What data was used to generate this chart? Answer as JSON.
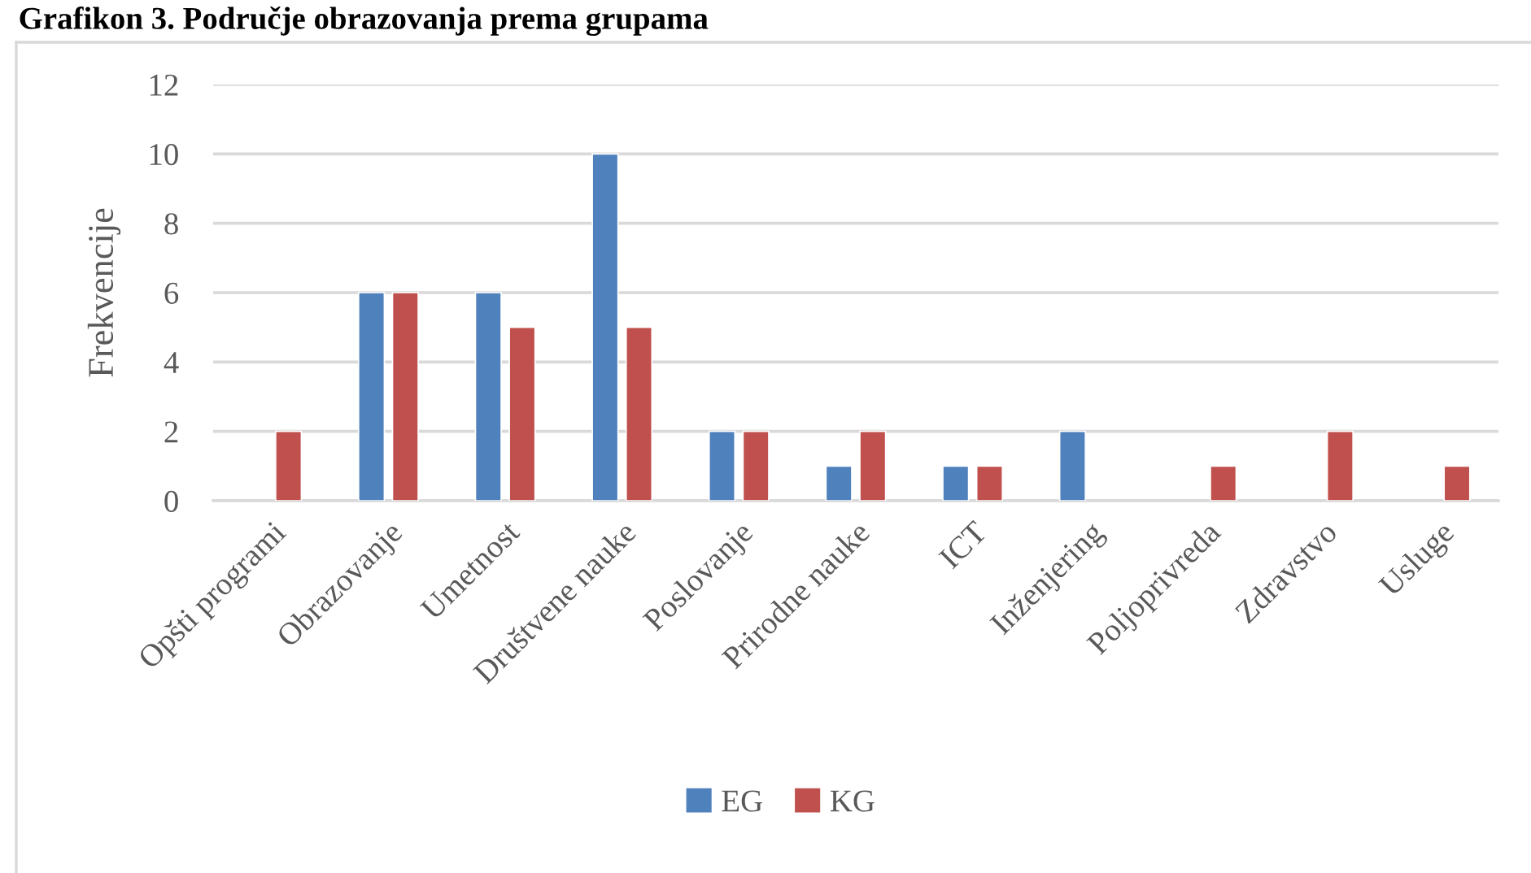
{
  "chart_data": {
    "type": "bar",
    "title": "Grafikon 3. Područje obrazovanja prema grupama",
    "ylabel": "Frekvencije",
    "categories": [
      "Opšti programi",
      "Obrazovanje",
      "Umetnost",
      "Društvene nauke",
      "Poslovanje",
      "Prirodne nauke",
      "ICT",
      "Inženjering",
      "Poljoprivreda",
      "Zdravstvo",
      "Usluge"
    ],
    "series": [
      {
        "name": "EG",
        "color": "#4f81bd",
        "values": [
          null,
          6,
          6,
          10,
          2,
          1,
          1,
          2,
          null,
          null,
          null
        ]
      },
      {
        "name": "KG",
        "color": "#c0504d",
        "values": [
          2,
          6,
          5,
          5,
          2,
          2,
          1,
          null,
          1,
          2,
          1
        ]
      }
    ],
    "ylim": [
      0,
      12
    ],
    "yticks": [
      0,
      2,
      4,
      6,
      8,
      10,
      12
    ],
    "grid": "y",
    "legend": "bottom"
  }
}
